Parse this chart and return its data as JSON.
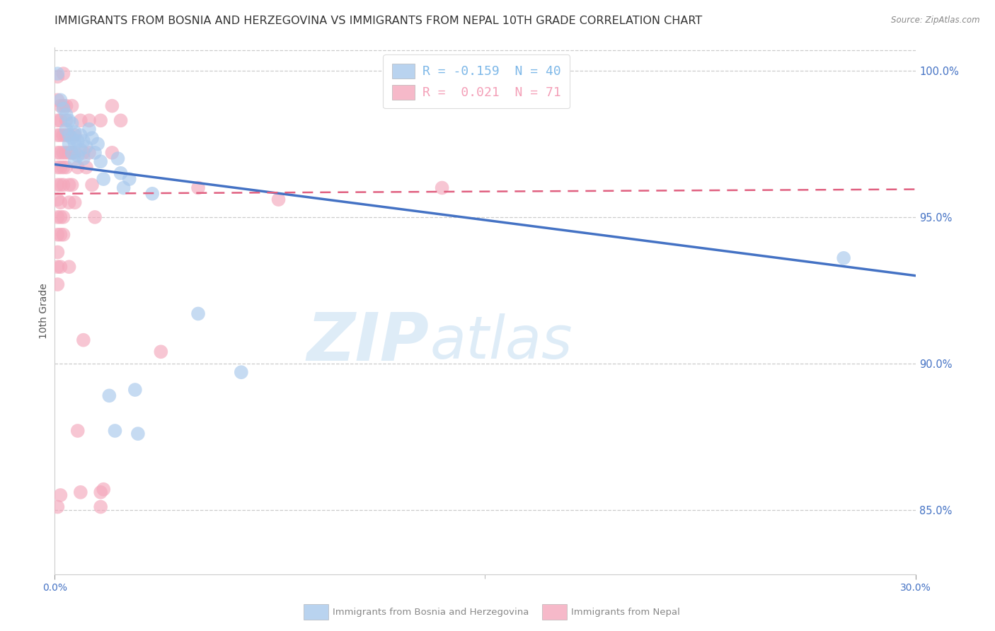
{
  "title": "IMMIGRANTS FROM BOSNIA AND HERZEGOVINA VS IMMIGRANTS FROM NEPAL 10TH GRADE CORRELATION CHART",
  "source": "Source: ZipAtlas.com",
  "ylabel": "10th Grade",
  "xmin": 0.0,
  "xmax": 0.3,
  "ymin": 0.828,
  "ymax": 1.008,
  "yticks": [
    0.85,
    0.9,
    0.95,
    1.0
  ],
  "ytick_labels": [
    "85.0%",
    "90.0%",
    "95.0%",
    "100.0%"
  ],
  "xtick_positions": [
    0.0,
    0.3
  ],
  "xtick_labels": [
    "0.0%",
    "30.0%"
  ],
  "legend_entries": [
    {
      "label_r": "R = ",
      "label_val": "-0.159",
      "label_n": "  N = ",
      "label_nval": "40",
      "color": "#7eb8e8"
    },
    {
      "label_r": "R =  ",
      "label_val": "0.021",
      "label_n": "  N = ",
      "label_nval": "71",
      "color": "#f4a0b8"
    }
  ],
  "blue_scatter": [
    [
      0.001,
      0.999
    ],
    [
      0.002,
      0.99
    ],
    [
      0.003,
      0.987
    ],
    [
      0.004,
      0.985
    ],
    [
      0.004,
      0.98
    ],
    [
      0.005,
      0.983
    ],
    [
      0.005,
      0.978
    ],
    [
      0.005,
      0.975
    ],
    [
      0.006,
      0.982
    ],
    [
      0.006,
      0.977
    ],
    [
      0.006,
      0.972
    ],
    [
      0.007,
      0.979
    ],
    [
      0.007,
      0.975
    ],
    [
      0.007,
      0.969
    ],
    [
      0.008,
      0.976
    ],
    [
      0.008,
      0.971
    ],
    [
      0.009,
      0.978
    ],
    [
      0.009,
      0.973
    ],
    [
      0.01,
      0.976
    ],
    [
      0.01,
      0.97
    ],
    [
      0.011,
      0.974
    ],
    [
      0.012,
      0.98
    ],
    [
      0.013,
      0.977
    ],
    [
      0.014,
      0.972
    ],
    [
      0.015,
      0.975
    ],
    [
      0.016,
      0.969
    ],
    [
      0.017,
      0.963
    ],
    [
      0.019,
      0.889
    ],
    [
      0.021,
      0.877
    ],
    [
      0.022,
      0.97
    ],
    [
      0.023,
      0.965
    ],
    [
      0.024,
      0.96
    ],
    [
      0.026,
      0.963
    ],
    [
      0.028,
      0.891
    ],
    [
      0.029,
      0.876
    ],
    [
      0.034,
      0.958
    ],
    [
      0.05,
      0.917
    ],
    [
      0.135,
      1.001
    ],
    [
      0.275,
      0.936
    ],
    [
      0.065,
      0.897
    ]
  ],
  "pink_scatter": [
    [
      0.001,
      0.998
    ],
    [
      0.001,
      0.99
    ],
    [
      0.001,
      0.983
    ],
    [
      0.001,
      0.978
    ],
    [
      0.001,
      0.972
    ],
    [
      0.001,
      0.967
    ],
    [
      0.001,
      0.961
    ],
    [
      0.001,
      0.956
    ],
    [
      0.001,
      0.95
    ],
    [
      0.001,
      0.944
    ],
    [
      0.001,
      0.938
    ],
    [
      0.001,
      0.933
    ],
    [
      0.001,
      0.927
    ],
    [
      0.001,
      0.851
    ],
    [
      0.002,
      0.988
    ],
    [
      0.002,
      0.983
    ],
    [
      0.002,
      0.978
    ],
    [
      0.002,
      0.972
    ],
    [
      0.002,
      0.967
    ],
    [
      0.002,
      0.961
    ],
    [
      0.002,
      0.955
    ],
    [
      0.002,
      0.95
    ],
    [
      0.002,
      0.944
    ],
    [
      0.002,
      0.933
    ],
    [
      0.002,
      0.855
    ],
    [
      0.003,
      0.999
    ],
    [
      0.003,
      0.988
    ],
    [
      0.003,
      0.978
    ],
    [
      0.003,
      0.972
    ],
    [
      0.003,
      0.967
    ],
    [
      0.003,
      0.961
    ],
    [
      0.003,
      0.95
    ],
    [
      0.003,
      0.944
    ],
    [
      0.004,
      0.988
    ],
    [
      0.004,
      0.983
    ],
    [
      0.004,
      0.978
    ],
    [
      0.004,
      0.972
    ],
    [
      0.004,
      0.967
    ],
    [
      0.005,
      0.978
    ],
    [
      0.005,
      0.972
    ],
    [
      0.005,
      0.961
    ],
    [
      0.005,
      0.955
    ],
    [
      0.005,
      0.933
    ],
    [
      0.006,
      0.988
    ],
    [
      0.006,
      0.972
    ],
    [
      0.006,
      0.961
    ],
    [
      0.007,
      0.978
    ],
    [
      0.007,
      0.972
    ],
    [
      0.007,
      0.955
    ],
    [
      0.008,
      0.967
    ],
    [
      0.008,
      0.877
    ],
    [
      0.009,
      0.983
    ],
    [
      0.009,
      0.856
    ],
    [
      0.01,
      0.972
    ],
    [
      0.01,
      0.908
    ],
    [
      0.011,
      0.967
    ],
    [
      0.012,
      0.983
    ],
    [
      0.012,
      0.972
    ],
    [
      0.013,
      0.961
    ],
    [
      0.014,
      0.95
    ],
    [
      0.016,
      0.983
    ],
    [
      0.016,
      0.856
    ],
    [
      0.016,
      0.851
    ],
    [
      0.017,
      0.857
    ],
    [
      0.02,
      0.988
    ],
    [
      0.02,
      0.972
    ],
    [
      0.023,
      0.983
    ],
    [
      0.037,
      0.904
    ],
    [
      0.05,
      0.96
    ],
    [
      0.078,
      0.956
    ],
    [
      0.135,
      0.96
    ]
  ],
  "blue_line": {
    "x0": 0.0,
    "x1": 0.3,
    "y0": 0.968,
    "y1": 0.93
  },
  "pink_line": {
    "x0": 0.0,
    "x1": 0.3,
    "y0": 0.958,
    "y1": 0.9595
  },
  "blue_color": "#a8c8ec",
  "pink_color": "#f4a8bc",
  "blue_line_color": "#4472c4",
  "pink_line_color": "#e06080",
  "watermark_zip": "ZIP",
  "watermark_atlas": "atlas",
  "background_color": "#ffffff",
  "grid_color": "#cccccc",
  "axis_color": "#4472c4",
  "title_color": "#333333",
  "title_fontsize": 11.5,
  "axis_label_fontsize": 10,
  "bottom_legend": [
    {
      "label": "Immigrants from Bosnia and Herzegovina",
      "color": "#a8c8ec"
    },
    {
      "label": "Immigrants from Nepal",
      "color": "#f4a8bc"
    }
  ]
}
